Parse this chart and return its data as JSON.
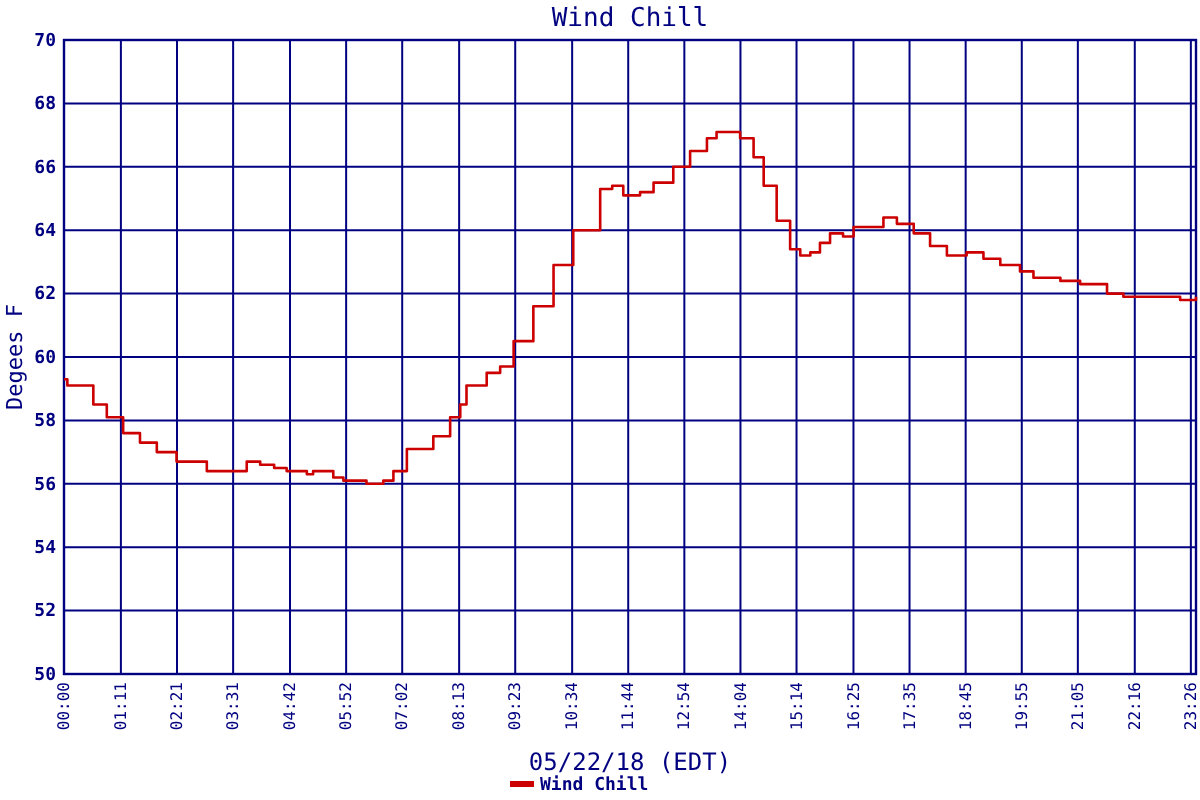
{
  "chart_data": {
    "type": "step",
    "title": "Wind Chill",
    "xlabel": "05/22/18 (EDT)",
    "ylabel": "Degees F",
    "xlim": [
      0,
      23.54
    ],
    "xticks": [
      {
        "value": 0,
        "label": "00:00"
      },
      {
        "value": 1.183,
        "label": "01:11"
      },
      {
        "value": 2.35,
        "label": "02:21"
      },
      {
        "value": 3.517,
        "label": "03:31"
      },
      {
        "value": 4.7,
        "label": "04:42"
      },
      {
        "value": 5.867,
        "label": "05:52"
      },
      {
        "value": 7.033,
        "label": "07:02"
      },
      {
        "value": 8.217,
        "label": "08:13"
      },
      {
        "value": 9.383,
        "label": "09:23"
      },
      {
        "value": 10.567,
        "label": "10:34"
      },
      {
        "value": 11.733,
        "label": "11:44"
      },
      {
        "value": 12.9,
        "label": "12:54"
      },
      {
        "value": 14.067,
        "label": "14:04"
      },
      {
        "value": 15.233,
        "label": "15:14"
      },
      {
        "value": 16.417,
        "label": "16:25"
      },
      {
        "value": 17.583,
        "label": "17:35"
      },
      {
        "value": 18.75,
        "label": "18:45"
      },
      {
        "value": 19.917,
        "label": "19:55"
      },
      {
        "value": 21.083,
        "label": "21:05"
      },
      {
        "value": 22.267,
        "label": "22:16"
      },
      {
        "value": 23.433,
        "label": "23:26"
      }
    ],
    "ylim": [
      50,
      70
    ],
    "yticks": [
      50,
      52,
      54,
      56,
      58,
      60,
      62,
      64,
      66,
      68,
      70
    ],
    "grid": true,
    "legend": "bottom",
    "marker": "none",
    "series": [
      {
        "name": "Wind Chill",
        "color": "#cc0000",
        "x": [
          0,
          0.07,
          0.36,
          0.61,
          0.89,
          1.23,
          1.58,
          1.93,
          2.34,
          2.68,
          2.97,
          3.38,
          3.8,
          4.08,
          4.37,
          4.63,
          5.05,
          5.18,
          5.6,
          5.81,
          6.29,
          6.64,
          6.85,
          7.13,
          7.4,
          7.68,
          8.03,
          8.24,
          8.37,
          8.62,
          8.79,
          9.07,
          9.35,
          9.76,
          10.18,
          10.59,
          11.15,
          11.4,
          11.63,
          11.98,
          12.26,
          12.67,
          13.02,
          13.37,
          13.57,
          13.85,
          14.06,
          14.34,
          14.55,
          14.82,
          15.1,
          15.31,
          15.52,
          15.72,
          15.93,
          16.2,
          16.42,
          16.83,
          17.04,
          17.32,
          17.67,
          18.01,
          18.36,
          18.77,
          19.12,
          19.47,
          19.88,
          20.16,
          20.72,
          21.13,
          21.69,
          22.03,
          22.93,
          23.21,
          23.54
        ],
        "values": [
          59.3,
          59.1,
          59.1,
          58.5,
          58.1,
          57.6,
          57.3,
          57.0,
          56.7,
          56.7,
          56.4,
          56.4,
          56.7,
          56.6,
          56.5,
          56.4,
          56.3,
          56.4,
          56.2,
          56.1,
          56.0,
          56.1,
          56.4,
          57.1,
          57.1,
          57.5,
          58.1,
          58.5,
          59.1,
          59.1,
          59.5,
          59.7,
          60.5,
          61.6,
          62.9,
          64.0,
          65.3,
          65.4,
          65.1,
          65.2,
          65.5,
          66.0,
          66.5,
          66.9,
          67.1,
          67.1,
          66.9,
          66.3,
          65.4,
          64.3,
          63.4,
          63.2,
          63.3,
          63.6,
          63.9,
          63.8,
          64.1,
          64.1,
          64.4,
          64.2,
          63.9,
          63.5,
          63.2,
          63.3,
          63.1,
          62.9,
          62.7,
          62.5,
          62.4,
          62.3,
          62.0,
          61.9,
          61.9,
          61.8,
          61.9
        ]
      }
    ]
  }
}
